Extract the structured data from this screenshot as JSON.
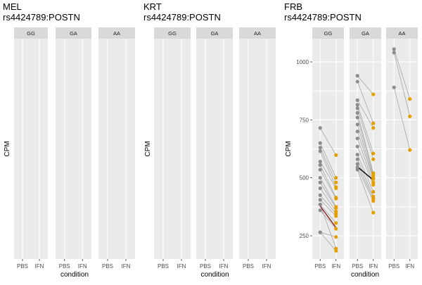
{
  "chart_data": [
    {
      "type": "scatter",
      "title": "MEL",
      "subtitle": "rs4424789:POSTN",
      "xlabel": "condition",
      "ylabel": "CPM",
      "facets": [
        {
          "label": "GG",
          "pairs": []
        },
        {
          "label": "GA",
          "pairs": []
        },
        {
          "label": "AA",
          "pairs": []
        }
      ],
      "x_categories": [
        "PBS",
        "IFN"
      ],
      "yticks": []
    },
    {
      "type": "scatter",
      "title": "KRT",
      "subtitle": "rs4424789:POSTN",
      "xlabel": "condition",
      "ylabel": "CPM",
      "facets": [
        {
          "label": "GG",
          "pairs": []
        },
        {
          "label": "GA",
          "pairs": []
        },
        {
          "label": "AA",
          "pairs": []
        }
      ],
      "x_categories": [
        "PBS",
        "IFN"
      ],
      "yticks": []
    },
    {
      "type": "scatter",
      "title": "FRB",
      "subtitle": "rs4424789:POSTN",
      "xlabel": "condition",
      "ylabel": "CPM",
      "x_categories": [
        "PBS",
        "IFN"
      ],
      "ylim": [
        150,
        1100
      ],
      "yticks": [
        250,
        500,
        750,
        1000
      ],
      "colors": {
        "PBS": "#8c8c8c",
        "IFN": "#e69f00",
        "line": "#a6a6a6"
      },
      "facets": [
        {
          "label": "GG",
          "mean_color": "#8b1a1a",
          "mean": [
            378,
            285
          ],
          "pairs": [
            [
              715,
              598
            ],
            [
              650,
              500
            ],
            [
              630,
              480
            ],
            [
              615,
              460
            ],
            [
              570,
              455
            ],
            [
              555,
              415
            ],
            [
              535,
              410
            ],
            [
              500,
              375
            ],
            [
              480,
              370
            ],
            [
              455,
              355
            ],
            [
              425,
              345
            ],
            [
              405,
              335
            ],
            [
              385,
              305
            ],
            [
              360,
              280
            ],
            [
              265,
              245
            ],
            [
              385,
              195
            ],
            [
              265,
              185
            ]
          ]
        },
        {
          "label": "GA",
          "mean_color": "#000000",
          "mean": [
            548,
            490
          ],
          "pairs": [
            [
              940,
              860
            ],
            [
              915,
              735
            ],
            [
              835,
              715
            ],
            [
              815,
              605
            ],
            [
              800,
              580
            ],
            [
              780,
              520
            ],
            [
              760,
              510
            ],
            [
              730,
              500
            ],
            [
              700,
              495
            ],
            [
              670,
              480
            ],
            [
              635,
              470
            ],
            [
              600,
              440
            ],
            [
              580,
              420
            ],
            [
              560,
              410
            ],
            [
              545,
              400
            ],
            [
              535,
              350
            ]
          ]
        },
        {
          "label": "AA",
          "mean_color": "",
          "mean": [],
          "pairs": [
            [
              1055,
              840
            ],
            [
              1040,
              765
            ],
            [
              890,
              620
            ]
          ]
        }
      ]
    }
  ]
}
